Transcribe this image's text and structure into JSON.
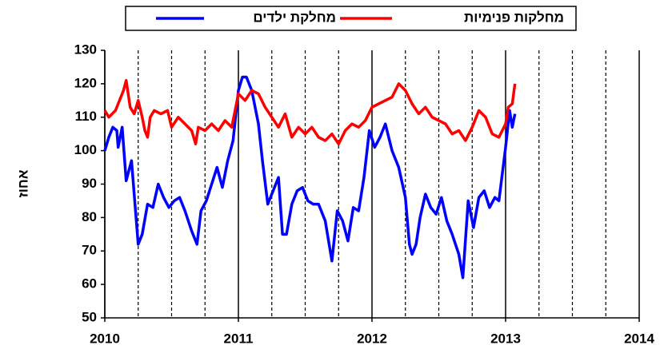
{
  "chart_data": {
    "type": "line",
    "y_label": "אחוז",
    "xlim": [
      2010,
      2014
    ],
    "xticks": [
      2010,
      2011,
      2012,
      2013,
      2014
    ],
    "x_minor_ticks": [
      2010.25,
      2010.5,
      2010.75,
      2011.25,
      2011.5,
      2011.75,
      2012.25,
      2012.5,
      2012.75,
      2013.25,
      2013.5,
      2013.75
    ],
    "ylim": [
      50,
      130
    ],
    "yticks": [
      50,
      60,
      70,
      80,
      90,
      100,
      110,
      120,
      130
    ],
    "series": [
      {
        "name": "מחלקת ילדים",
        "color": "#0000ff",
        "x": [
          2010.0,
          2010.03,
          2010.06,
          2010.09,
          2010.1,
          2010.13,
          2010.16,
          2010.2,
          2010.25,
          2010.28,
          2010.32,
          2010.36,
          2010.4,
          2010.44,
          2010.48,
          2010.52,
          2010.56,
          2010.6,
          2010.65,
          2010.69,
          2010.72,
          2010.76,
          2010.8,
          2010.84,
          2010.88,
          2010.92,
          2010.96,
          2011.0,
          2011.03,
          2011.06,
          2011.1,
          2011.15,
          2011.18,
          2011.22,
          2011.26,
          2011.3,
          2011.33,
          2011.36,
          2011.4,
          2011.44,
          2011.48,
          2011.52,
          2011.56,
          2011.6,
          2011.65,
          2011.7,
          2011.74,
          2011.78,
          2011.82,
          2011.86,
          2011.9,
          2011.94,
          2011.98,
          2012.02,
          2012.06,
          2012.1,
          2012.15,
          2012.2,
          2012.25,
          2012.28,
          2012.3,
          2012.33,
          2012.36,
          2012.4,
          2012.44,
          2012.48,
          2012.52,
          2012.56,
          2012.6,
          2012.65,
          2012.68,
          2012.72,
          2012.76,
          2012.8,
          2012.84,
          2012.88,
          2012.92,
          2012.95,
          2013.0,
          2013.03,
          2013.05,
          2013.07
        ],
        "values": [
          100,
          104,
          107,
          106,
          101,
          107,
          91,
          97,
          72,
          75,
          84,
          83,
          90,
          86,
          83,
          85,
          86,
          82,
          76,
          72,
          82,
          85,
          90,
          95,
          89,
          97,
          103,
          118,
          122,
          122,
          118,
          108,
          97,
          84,
          88,
          92,
          75,
          75,
          84,
          88,
          89,
          85,
          84,
          84,
          79,
          67,
          82,
          79,
          73,
          83,
          82,
          92,
          106,
          101,
          104,
          108,
          100,
          95,
          86,
          72,
          69,
          72,
          80,
          87,
          83,
          81,
          86,
          79,
          75,
          69,
          62,
          85,
          77,
          86,
          88,
          83,
          86,
          85,
          101,
          112,
          107,
          111
        ]
      },
      {
        "name": "מחלקות פנימיות",
        "color": "#ff0000",
        "x": [
          2010.0,
          2010.03,
          2010.08,
          2010.12,
          2010.14,
          2010.16,
          2010.19,
          2010.22,
          2010.25,
          2010.28,
          2010.3,
          2010.32,
          2010.34,
          2010.37,
          2010.42,
          2010.47,
          2010.5,
          2010.55,
          2010.6,
          2010.65,
          2010.68,
          2010.7,
          2010.75,
          2010.8,
          2010.85,
          2010.9,
          2010.95,
          2011.0,
          2011.05,
          2011.1,
          2011.15,
          2011.2,
          2011.25,
          2011.3,
          2011.35,
          2011.4,
          2011.45,
          2011.5,
          2011.55,
          2011.6,
          2011.65,
          2011.7,
          2011.75,
          2011.8,
          2011.85,
          2011.9,
          2011.95,
          2012.0,
          2012.05,
          2012.1,
          2012.15,
          2012.2,
          2012.25,
          2012.3,
          2012.35,
          2012.4,
          2012.45,
          2012.5,
          2012.55,
          2012.6,
          2012.65,
          2012.7,
          2012.75,
          2012.8,
          2012.85,
          2012.9,
          2012.95,
          2013.0,
          2013.02,
          2013.05,
          2013.07
        ],
        "values": [
          112,
          110,
          112,
          116,
          118,
          121,
          113,
          111,
          115,
          110,
          106,
          104,
          110,
          112,
          111,
          112,
          107,
          110,
          108,
          106,
          102,
          107,
          106,
          108,
          106,
          109,
          107,
          117,
          115,
          118,
          117,
          113,
          110,
          107,
          111,
          104,
          107,
          105,
          107,
          104,
          103,
          105,
          102,
          106,
          108,
          107,
          109,
          113,
          114,
          115,
          116,
          120,
          118,
          114,
          111,
          113,
          110,
          109,
          108,
          105,
          106,
          103,
          107,
          112,
          110,
          105,
          104,
          108,
          113,
          114,
          120
        ]
      }
    ]
  }
}
